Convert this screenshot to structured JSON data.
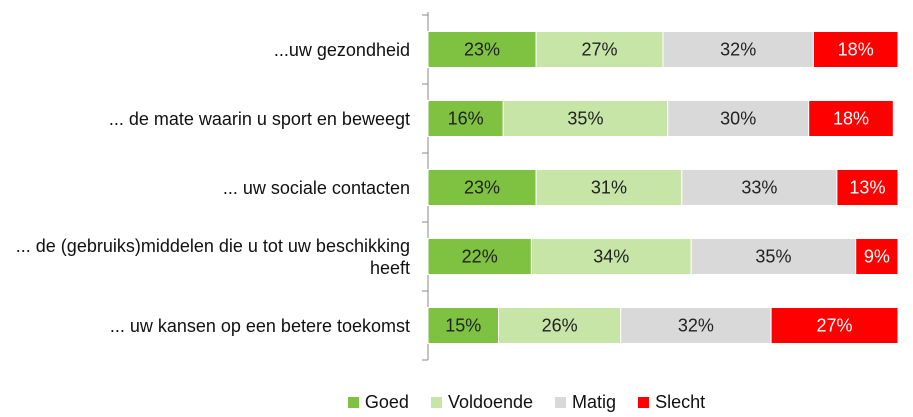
{
  "chart_data": {
    "type": "stacked-bar-horizontal",
    "categories": [
      "...uw gezondheid",
      "... de mate waarin u sport en beweegt",
      "... uw sociale contacten",
      "... de (gebruiks)middelen die u tot uw beschikking heeft",
      "... uw kansen op een betere toekomst"
    ],
    "series": [
      {
        "name": "Goed",
        "color": "#7fc241",
        "values": [
          23,
          16,
          23,
          22,
          15
        ],
        "value_labels": [
          "23%",
          "16%",
          "23%",
          "22%",
          "15%"
        ]
      },
      {
        "name": "Voldoende",
        "color": "#c6e5a6",
        "values": [
          27,
          35,
          31,
          34,
          26
        ],
        "value_labels": [
          "27%",
          "35%",
          "31%",
          "34%",
          "26%"
        ]
      },
      {
        "name": "Matig",
        "color": "#d9d9d9",
        "values": [
          32,
          30,
          33,
          35,
          32
        ],
        "value_labels": [
          "32%",
          "30%",
          "33%",
          "35%",
          "32%"
        ]
      },
      {
        "name": "Slecht",
        "color": "#ff0000",
        "values": [
          18,
          18,
          13,
          9,
          27
        ],
        "value_labels": [
          "18%",
          "18%",
          "13%",
          "9%",
          "27%"
        ]
      }
    ]
  }
}
